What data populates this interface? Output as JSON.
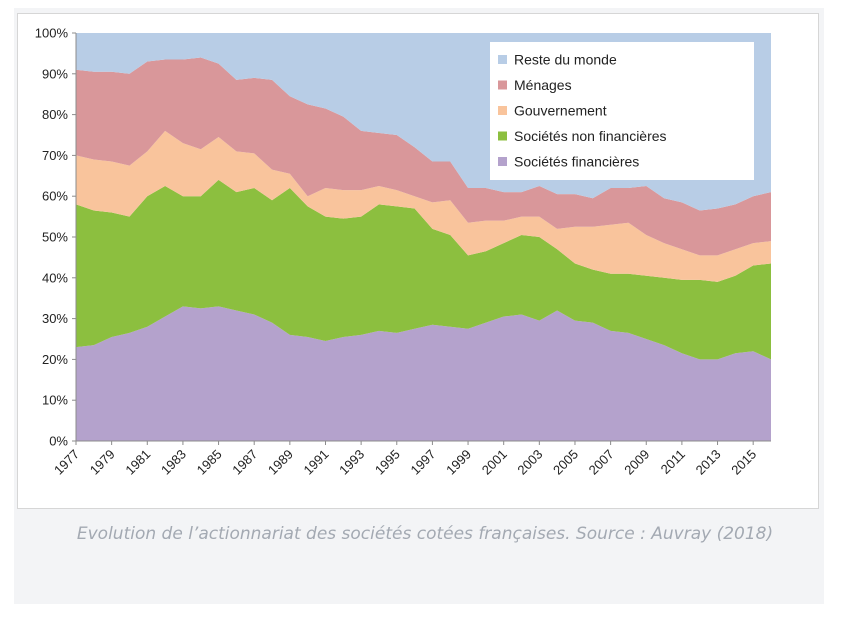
{
  "caption": "Evolution de l’actionnariat des sociétés cotées françaises. Source : Auvray (2018)",
  "chart_data": {
    "type": "area",
    "stacked": true,
    "categories": [
      "1977",
      "1978",
      "1979",
      "1980",
      "1981",
      "1982",
      "1983",
      "1984",
      "1985",
      "1986",
      "1987",
      "1988",
      "1989",
      "1990",
      "1991",
      "1992",
      "1993",
      "1994",
      "1995",
      "1996",
      "1997",
      "1998",
      "1999",
      "2000",
      "2001",
      "2002",
      "2003",
      "2004",
      "2005",
      "2006",
      "2007",
      "2008",
      "2009",
      "2010",
      "2011",
      "2012",
      "2013",
      "2014",
      "2015",
      "2016"
    ],
    "x_tick_labels": [
      "1977",
      "1979",
      "1981",
      "1983",
      "1985",
      "1987",
      "1989",
      "1991",
      "1993",
      "1995",
      "1997",
      "1999",
      "2001",
      "2003",
      "2005",
      "2007",
      "2009",
      "2011",
      "2013",
      "2015"
    ],
    "y_tick_labels": [
      "0%",
      "10%",
      "20%",
      "30%",
      "40%",
      "50%",
      "60%",
      "70%",
      "80%",
      "90%",
      "100%"
    ],
    "ylim": [
      0,
      100
    ],
    "y_unit": "%",
    "grid": false,
    "legend_position": "top-right",
    "series": [
      {
        "name": "Sociétés financières",
        "color": "#b4a2cc",
        "values": [
          23,
          23.5,
          25.5,
          26.5,
          28,
          30.5,
          33,
          32.5,
          33,
          32,
          31,
          29,
          26,
          25.5,
          24.5,
          25.5,
          26,
          27,
          26.5,
          27.5,
          28.5,
          28,
          27.5,
          29,
          30.5,
          31,
          29.5,
          32,
          29.5,
          29,
          27,
          26.5,
          25,
          23.5,
          21.5,
          20,
          20,
          21.5,
          22,
          20
        ]
      },
      {
        "name": "Sociétés non financières",
        "color": "#8cbf3f",
        "values": [
          35,
          33,
          30.5,
          28.5,
          32,
          32,
          27,
          27.5,
          31,
          29,
          31,
          30,
          36,
          32,
          30.5,
          29,
          29,
          31,
          31,
          29.5,
          23.5,
          22.5,
          18,
          17.5,
          18,
          19.5,
          20.5,
          15,
          14,
          13,
          14,
          14.5,
          15.5,
          16.5,
          18,
          19.5,
          19,
          19,
          21,
          23.5
        ]
      },
      {
        "name": "Gouvernement",
        "color": "#f9c49c",
        "values": [
          12,
          12.5,
          12.5,
          12.5,
          11,
          13.5,
          13,
          11.5,
          10.5,
          10,
          8.5,
          7.5,
          3.5,
          2.5,
          7,
          7,
          6.5,
          4.5,
          4,
          3,
          6.5,
          8.5,
          8,
          7.5,
          5.5,
          4.5,
          5,
          5,
          9,
          10.5,
          12,
          12.5,
          10,
          8.5,
          7.5,
          6,
          6.5,
          6.5,
          5.5,
          5.5
        ]
      },
      {
        "name": "Ménages",
        "color": "#d9979a",
        "values": [
          21,
          21.5,
          22,
          22.5,
          22,
          17.5,
          20.5,
          22.5,
          18,
          17.5,
          18.5,
          22,
          19,
          22.5,
          19.5,
          18,
          14.5,
          13,
          13.5,
          12,
          10,
          9.5,
          8.5,
          8,
          7,
          6,
          7.5,
          8.5,
          8,
          7,
          9,
          8.5,
          12,
          11,
          11.5,
          11,
          11.5,
          11,
          11.5,
          12
        ]
      },
      {
        "name": "Reste du monde",
        "color": "#b8cde6",
        "values": [
          9,
          9.5,
          9.5,
          10,
          7,
          6.5,
          6.5,
          6,
          7.5,
          11.5,
          11,
          11.5,
          15.5,
          17.5,
          18.5,
          20.5,
          24,
          24.5,
          25,
          28,
          31.5,
          31.5,
          38,
          38,
          39,
          39,
          37.5,
          39.5,
          39.5,
          40.5,
          38,
          38,
          37.5,
          40.5,
          41.5,
          43.5,
          43,
          42,
          40,
          39
        ]
      }
    ]
  }
}
